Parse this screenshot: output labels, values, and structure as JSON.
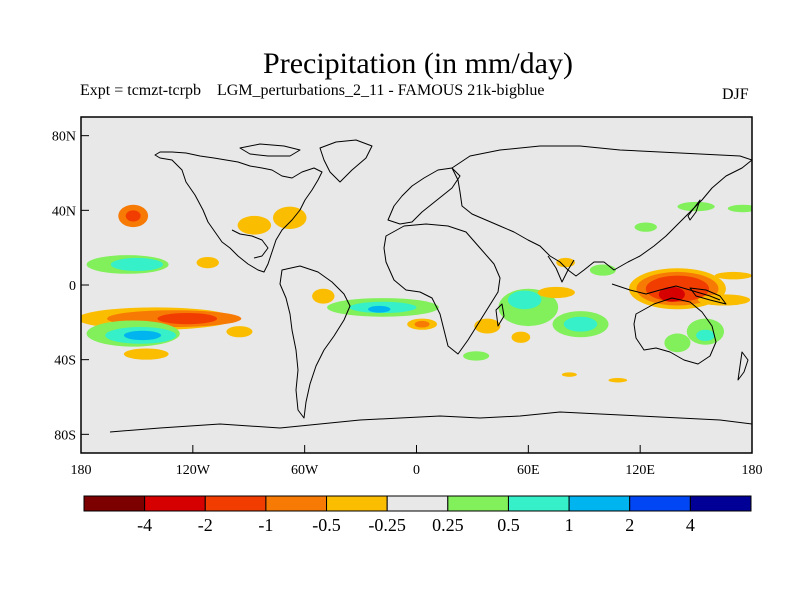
{
  "title": "Precipitation (in mm/day)",
  "subtitle": "Expt = tcmzt-tcrpb    LGM_perturbations_2_11 - FAMOUS 21k-bigblue",
  "season": "DJF",
  "map": {
    "projection": "equirectangular",
    "lon_range": [
      -180,
      180
    ],
    "lat_range": [
      -90,
      90
    ],
    "land_background": "#e8e8e8",
    "coastline_color": "#000000",
    "y_ticks": [
      {
        "lat": 80,
        "label": "80N"
      },
      {
        "lat": 40,
        "label": "40N"
      },
      {
        "lat": 0,
        "label": "0"
      },
      {
        "lat": -40,
        "label": "40S"
      },
      {
        "lat": -80,
        "label": "80S"
      }
    ],
    "x_ticks": [
      {
        "lon": -180,
        "label": "180"
      },
      {
        "lon": -120,
        "label": "120W"
      },
      {
        "lon": -60,
        "label": "60W"
      },
      {
        "lon": 0,
        "label": "0"
      },
      {
        "lon": 60,
        "label": "60E"
      },
      {
        "lon": 120,
        "label": "120E"
      },
      {
        "lon": 180,
        "label": "180"
      }
    ],
    "anomaly_regions": [
      {
        "level": "-1",
        "color": "#f77a05",
        "lon": -152,
        "lat": 37,
        "rlon": 8,
        "rlat": 6
      },
      {
        "level": "-2",
        "color": "#f23d00",
        "lon": -152,
        "lat": 37,
        "rlon": 4,
        "rlat": 3
      },
      {
        "level": "-0.5",
        "color": "#fbbd00",
        "lon": -112,
        "lat": 12,
        "rlon": 6,
        "rlat": 3
      },
      {
        "level": "-0.5",
        "color": "#fbbd00",
        "lon": -87,
        "lat": 32,
        "rlon": 9,
        "rlat": 5
      },
      {
        "level": "-0.5",
        "color": "#fbbd00",
        "lon": -68,
        "lat": 36,
        "rlon": 9,
        "rlat": 6
      },
      {
        "level": "0.5",
        "color": "#82f05a",
        "lon": -155,
        "lat": 11,
        "rlon": 22,
        "rlat": 5
      },
      {
        "level": "1",
        "color": "#35f0c8",
        "lon": -150,
        "lat": 11,
        "rlon": 14,
        "rlat": 3.5
      },
      {
        "level": "-0.5",
        "color": "#fbbd00",
        "lon": -140,
        "lat": -18,
        "rlon": 42,
        "rlat": 6
      },
      {
        "level": "-1",
        "color": "#f77a05",
        "lon": -130,
        "lat": -18,
        "rlon": 36,
        "rlat": 4.5
      },
      {
        "level": "-2",
        "color": "#f23d00",
        "lon": -123,
        "lat": -18,
        "rlon": 16,
        "rlat": 3
      },
      {
        "level": "0.5",
        "color": "#82f05a",
        "lon": -152,
        "lat": -26,
        "rlon": 25,
        "rlat": 7
      },
      {
        "level": "1",
        "color": "#35f0c8",
        "lon": -148,
        "lat": -27,
        "rlon": 19,
        "rlat": 4.5
      },
      {
        "level": "2",
        "color": "#00b4f0",
        "lon": -147,
        "lat": -27,
        "rlon": 10,
        "rlat": 2.5
      },
      {
        "level": "-0.5",
        "color": "#fbbd00",
        "lon": -145,
        "lat": -37,
        "rlon": 12,
        "rlat": 3
      },
      {
        "level": "-0.5",
        "color": "#fbbd00",
        "lon": -95,
        "lat": -25,
        "rlon": 7,
        "rlat": 3
      },
      {
        "level": "-0.5",
        "color": "#fbbd00",
        "lon": -50,
        "lat": -6,
        "rlon": 6,
        "rlat": 4
      },
      {
        "level": "0.5",
        "color": "#82f05a",
        "lon": -18,
        "lat": -12,
        "rlon": 30,
        "rlat": 5
      },
      {
        "level": "1",
        "color": "#35f0c8",
        "lon": -18,
        "lat": -12,
        "rlon": 18,
        "rlat": 3
      },
      {
        "level": "2",
        "color": "#00b4f0",
        "lon": -20,
        "lat": -13,
        "rlon": 6,
        "rlat": 1.8
      },
      {
        "level": "-0.5",
        "color": "#fbbd00",
        "lon": 3,
        "lat": -21,
        "rlon": 8,
        "rlat": 3
      },
      {
        "level": "-1",
        "color": "#f77a05",
        "lon": 3,
        "lat": -21,
        "rlon": 4,
        "rlat": 1.8
      },
      {
        "level": "-0.5",
        "color": "#fbbd00",
        "lon": 38,
        "lat": -22,
        "rlon": 7,
        "rlat": 4
      },
      {
        "level": "0.5",
        "color": "#82f05a",
        "lon": 32,
        "lat": -38,
        "rlon": 7,
        "rlat": 2.5
      },
      {
        "level": "-0.5",
        "color": "#fbbd00",
        "lon": 56,
        "lat": -28,
        "rlon": 5,
        "rlat": 3
      },
      {
        "level": "0.5",
        "color": "#82f05a",
        "lon": 60,
        "lat": -12,
        "rlon": 16,
        "rlat": 10
      },
      {
        "level": "1",
        "color": "#35f0c8",
        "lon": 58,
        "lat": -8,
        "rlon": 9,
        "rlat": 5
      },
      {
        "level": "0.5",
        "color": "#82f05a",
        "lon": 88,
        "lat": -21,
        "rlon": 15,
        "rlat": 7
      },
      {
        "level": "1",
        "color": "#35f0c8",
        "lon": 88,
        "lat": -21,
        "rlon": 9,
        "rlat": 4
      },
      {
        "level": "-0.5",
        "color": "#fbbd00",
        "lon": 75,
        "lat": -4,
        "rlon": 10,
        "rlat": 3
      },
      {
        "level": "-0.5",
        "color": "#fbbd00",
        "lon": 80,
        "lat": 12,
        "rlon": 5,
        "rlat": 2.5
      },
      {
        "level": "0.5",
        "color": "#82f05a",
        "lon": 100,
        "lat": 8,
        "rlon": 7,
        "rlat": 3
      },
      {
        "level": "-0.5",
        "color": "#fbbd00",
        "lon": 140,
        "lat": -2,
        "rlon": 26,
        "rlat": 11
      },
      {
        "level": "-1",
        "color": "#f77a05",
        "lon": 140,
        "lat": -2,
        "rlon": 22,
        "rlat": 9
      },
      {
        "level": "-2",
        "color": "#f23d00",
        "lon": 140,
        "lat": -2,
        "rlon": 17,
        "rlat": 7
      },
      {
        "level": "-4",
        "color": "#d70000",
        "lon": 137,
        "lat": -5,
        "rlon": 7,
        "rlat": 4
      },
      {
        "level": "-0.5",
        "color": "#fbbd00",
        "lon": 170,
        "lat": 5,
        "rlon": 10,
        "rlat": 2
      },
      {
        "level": "-0.5",
        "color": "#fbbd00",
        "lon": 165,
        "lat": -8,
        "rlon": 14,
        "rlat": 3
      },
      {
        "level": "0.5",
        "color": "#82f05a",
        "lon": 155,
        "lat": -25,
        "rlon": 10,
        "rlat": 7
      },
      {
        "level": "1",
        "color": "#35f0c8",
        "lon": 155,
        "lat": -27,
        "rlon": 5,
        "rlat": 3
      },
      {
        "level": "0.5",
        "color": "#82f05a",
        "lon": 140,
        "lat": -31,
        "rlon": 7,
        "rlat": 5
      },
      {
        "level": "0.5",
        "color": "#82f05a",
        "lon": 150,
        "lat": 42,
        "rlon": 10,
        "rlat": 2.5
      },
      {
        "level": "0.5",
        "color": "#82f05a",
        "lon": 123,
        "lat": 31,
        "rlon": 6,
        "rlat": 2.5
      },
      {
        "level": "0.5",
        "color": "#82f05a",
        "lon": 175,
        "lat": 41,
        "rlon": 8,
        "rlat": 2
      },
      {
        "level": "-0.5",
        "color": "#fbbd00",
        "lon": 108,
        "lat": -51,
        "rlon": 5,
        "rlat": 1.2
      },
      {
        "level": "-0.5",
        "color": "#fbbd00",
        "lon": 82,
        "lat": -48,
        "rlon": 4,
        "rlat": 1.2
      }
    ]
  },
  "colorbar": {
    "colors": [
      "#7d0000",
      "#d70000",
      "#f23d00",
      "#f77a05",
      "#fbbd00",
      "#e8e8e8",
      "#82f05a",
      "#35f0c8",
      "#00b4f0",
      "#0046f5",
      "#000096"
    ],
    "labels": [
      "-4",
      "-2",
      "-1",
      "-0.5",
      "-0.25",
      "0.25",
      "0.5",
      "1",
      "2",
      "4"
    ]
  }
}
